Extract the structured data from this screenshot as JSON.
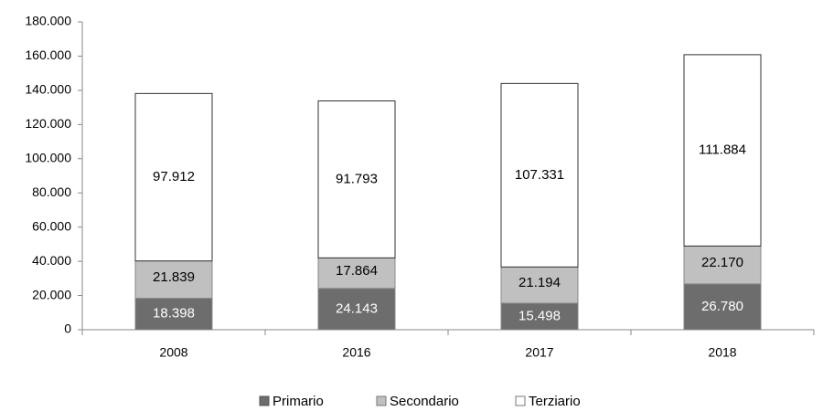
{
  "chart_data": {
    "type": "stacked_bar",
    "categories": [
      "2008",
      "2016",
      "2017",
      "2018"
    ],
    "series": [
      {
        "name": "Primario",
        "color": "#6d6d6d",
        "values": [
          18398,
          24143,
          15498,
          26780
        ],
        "value_labels": [
          "18.398",
          "24.143",
          "15.498",
          "26.780"
        ]
      },
      {
        "name": "Secondario",
        "color": "#c0c0c0",
        "values": [
          21839,
          17864,
          21194,
          22170
        ],
        "value_labels": [
          "21.839",
          "17.864",
          "21.194",
          "22.170"
        ]
      },
      {
        "name": "Terziario",
        "color": "#ffffff",
        "values": [
          97912,
          91793,
          107331,
          111884
        ],
        "value_labels": [
          "97.912",
          "91.793",
          "107.331",
          "111.884"
        ]
      }
    ],
    "ylim": [
      0,
      180000
    ],
    "yticks": [
      0,
      {
        "value": 20000,
        "label": "20.000"
      },
      {
        "value": 40000,
        "label": "40.000"
      },
      {
        "value": 60000,
        "label": "60.000"
      },
      {
        "value": 80000,
        "label": "80.000"
      },
      {
        "value": 100000,
        "label": "100.000"
      },
      {
        "value": 120000,
        "label": "120.000"
      },
      {
        "value": 140000,
        "label": "140.000"
      },
      {
        "value": 160000,
        "label": "160.000"
      },
      {
        "value": 180000,
        "label": "180.000"
      }
    ],
    "grid": false,
    "legend": "bottom"
  }
}
